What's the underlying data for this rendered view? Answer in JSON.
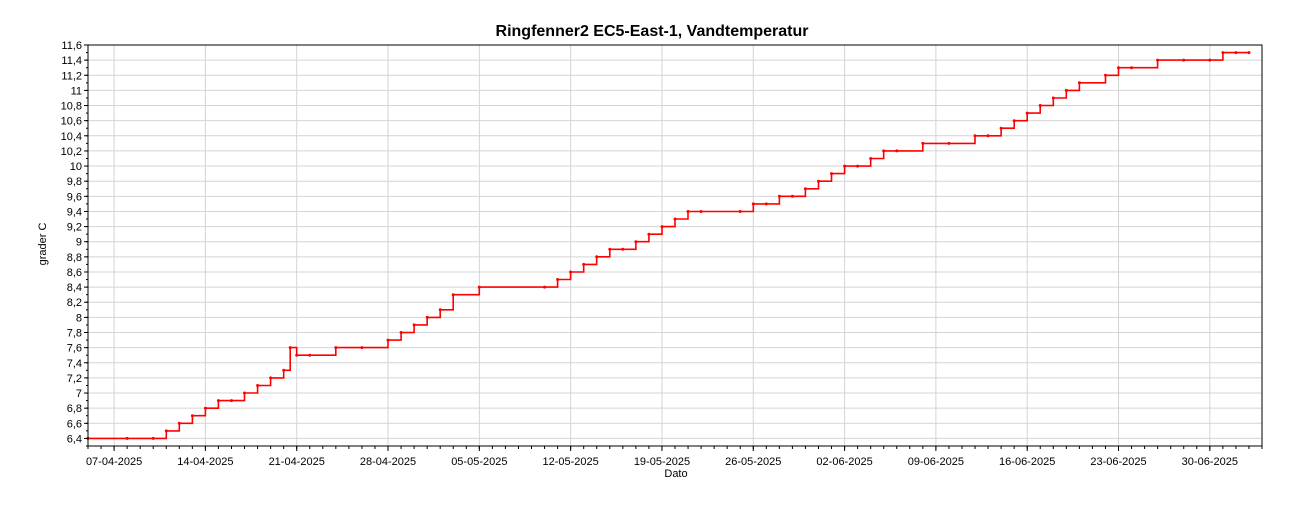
{
  "chart_data": {
    "type": "line",
    "title": "Ringfenner2 EC5-East-1, Vandtemperatur",
    "xlabel": "Dato",
    "ylabel": "grader C",
    "ylim": [
      6.3,
      11.6
    ],
    "xlim": [
      "2025-04-05",
      "2025-07-04"
    ],
    "grid": true,
    "series_color": "#ff0000",
    "yticks": [
      6.4,
      6.6,
      6.8,
      7,
      7.2,
      7.4,
      7.6,
      7.8,
      8,
      8.2,
      8.4,
      8.6,
      8.8,
      9,
      9.2,
      9.4,
      9.6,
      9.8,
      10,
      10.2,
      10.4,
      10.6,
      10.8,
      11,
      11.2,
      11.4,
      11.6
    ],
    "ytick_labels": [
      "6,4",
      "6,6",
      "6,8",
      "7",
      "7,2",
      "7,4",
      "7,6",
      "7,8",
      "8",
      "8,2",
      "8,4",
      "8,6",
      "8,8",
      "9",
      "9,2",
      "9,4",
      "9,6",
      "9,8",
      "10",
      "10,2",
      "10,4",
      "10,6",
      "10,8",
      "11",
      "11,2",
      "11,4",
      "11,6"
    ],
    "xticks": [
      "2025-04-07",
      "2025-04-14",
      "2025-04-21",
      "2025-04-28",
      "2025-05-05",
      "2025-05-12",
      "2025-05-19",
      "2025-05-26",
      "2025-06-02",
      "2025-06-09",
      "2025-06-16",
      "2025-06-23",
      "2025-06-30"
    ],
    "xtick_labels": [
      "07-04-2025",
      "14-04-2025",
      "21-04-2025",
      "28-04-2025",
      "05-05-2025",
      "12-05-2025",
      "19-05-2025",
      "26-05-2025",
      "02-06-2025",
      "09-06-2025",
      "16-06-2025",
      "23-06-2025",
      "30-06-2025"
    ],
    "series": [
      {
        "x": [
          "2025-04-05",
          "2025-04-08",
          "2025-04-10",
          "2025-04-11",
          "2025-04-12",
          "2025-04-13",
          "2025-04-14",
          "2025-04-15",
          "2025-04-16",
          "2025-04-17",
          "2025-04-18",
          "2025-04-19",
          "2025-04-20",
          "2025-04-20.5",
          "2025-04-21",
          "2025-04-22",
          "2025-04-24",
          "2025-04-26",
          "2025-04-28",
          "2025-04-29",
          "2025-04-30",
          "2025-05-01",
          "2025-05-02",
          "2025-05-03",
          "2025-05-05",
          "2025-05-10",
          "2025-05-11",
          "2025-05-12",
          "2025-05-13",
          "2025-05-14",
          "2025-05-15",
          "2025-05-16",
          "2025-05-17",
          "2025-05-18",
          "2025-05-19",
          "2025-05-20",
          "2025-05-21",
          "2025-05-22",
          "2025-05-25",
          "2025-05-26",
          "2025-05-27",
          "2025-05-28",
          "2025-05-29",
          "2025-05-30",
          "2025-05-31",
          "2025-06-01",
          "2025-06-02",
          "2025-06-03",
          "2025-06-04",
          "2025-06-05",
          "2025-06-06",
          "2025-06-08",
          "2025-06-10",
          "2025-06-12",
          "2025-06-13",
          "2025-06-14",
          "2025-06-15",
          "2025-06-16",
          "2025-06-17",
          "2025-06-18",
          "2025-06-19",
          "2025-06-20",
          "2025-06-22",
          "2025-06-23",
          "2025-06-24",
          "2025-06-26",
          "2025-06-28",
          "2025-06-30",
          "2025-07-01",
          "2025-07-02",
          "2025-07-03"
        ],
        "y": [
          6.4,
          6.4,
          6.4,
          6.5,
          6.6,
          6.7,
          6.8,
          6.9,
          6.9,
          7.0,
          7.1,
          7.2,
          7.3,
          7.6,
          7.5,
          7.5,
          7.6,
          7.6,
          7.7,
          7.8,
          7.9,
          8.0,
          8.1,
          8.3,
          8.4,
          8.4,
          8.5,
          8.6,
          8.7,
          8.8,
          8.9,
          8.9,
          9.0,
          9.1,
          9.2,
          9.3,
          9.4,
          9.4,
          9.4,
          9.5,
          9.5,
          9.6,
          9.6,
          9.7,
          9.8,
          9.9,
          10.0,
          10.0,
          10.1,
          10.2,
          10.2,
          10.3,
          10.3,
          10.4,
          10.4,
          10.5,
          10.6,
          10.7,
          10.8,
          10.9,
          11.0,
          11.1,
          11.2,
          11.3,
          11.3,
          11.4,
          11.4,
          11.4,
          11.5,
          11.5,
          11.5
        ]
      }
    ]
  }
}
